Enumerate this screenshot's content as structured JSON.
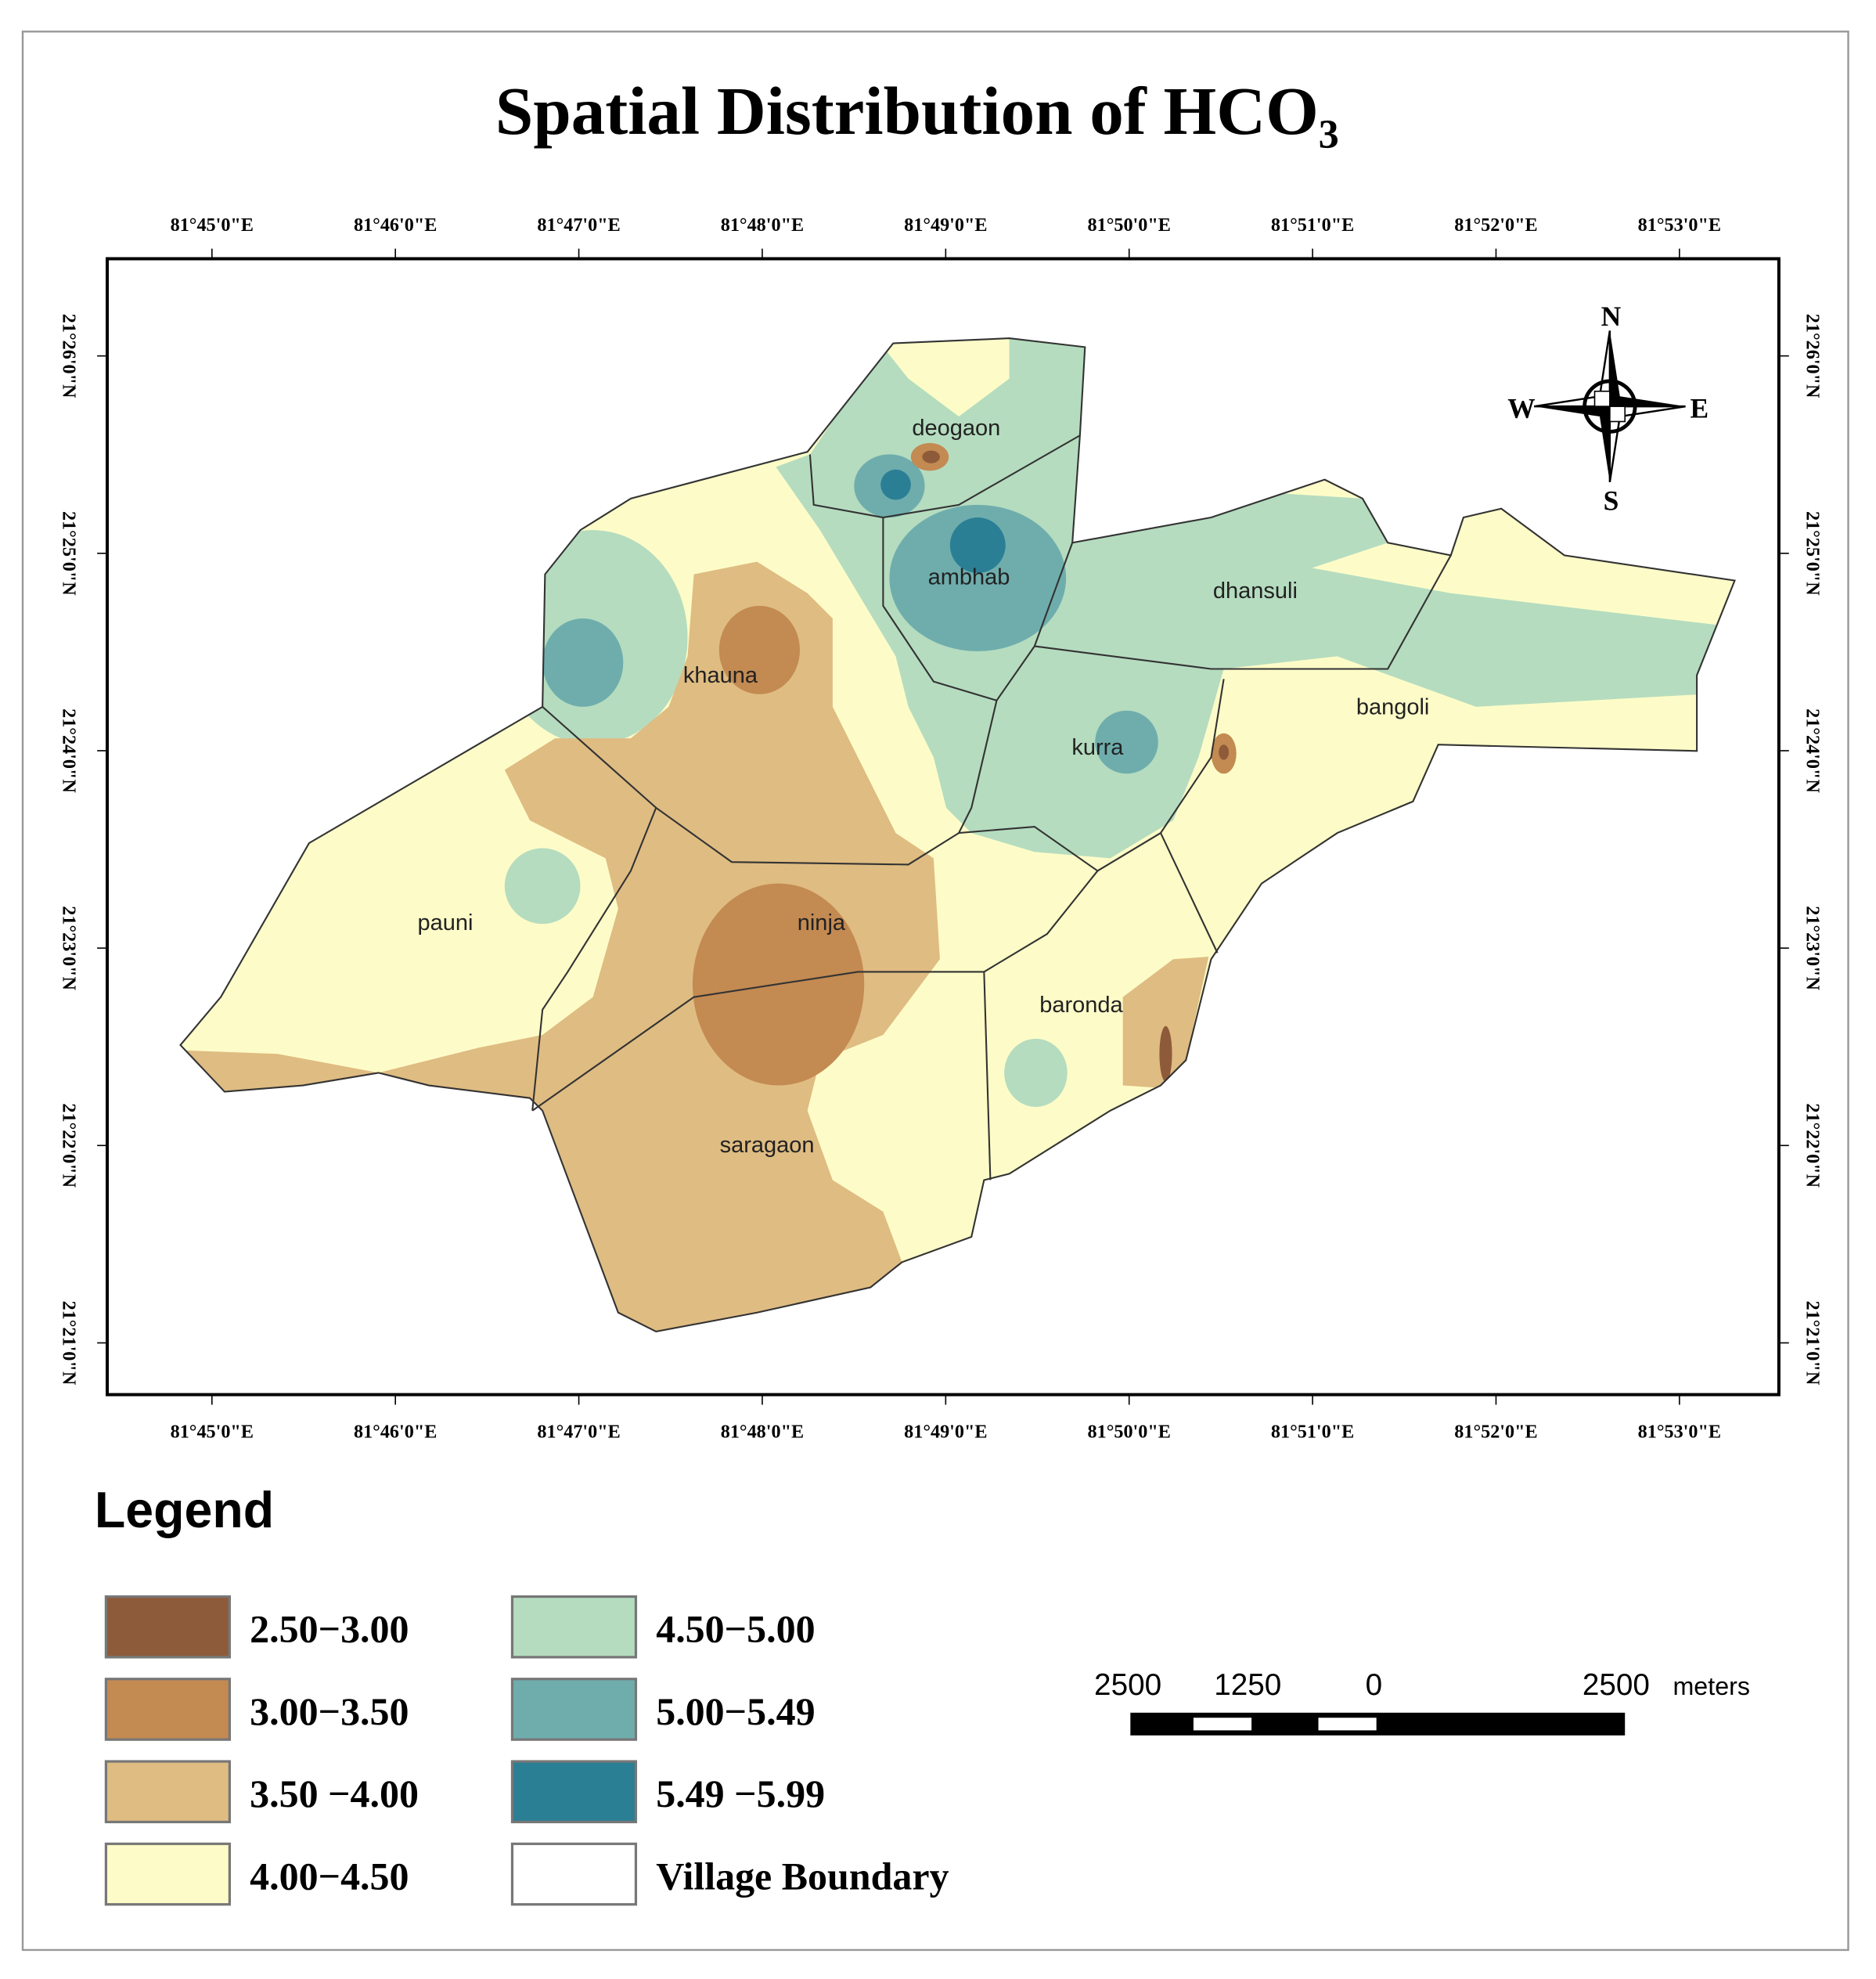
{
  "title": "Spatial Distribution of HCO₃",
  "longitude_labels": [
    "81°45'0\"E",
    "81°46'0\"E",
    "81°47'0\"E",
    "81°48'0\"E",
    "81°49'0\"E",
    "81°50'0\"E",
    "81°51'0\"E",
    "81°52'0\"E",
    "81°53'0\"E"
  ],
  "latitude_labels": [
    "21°26'0\"N",
    "21°25'0\"N",
    "21°24'0\"N",
    "21°23'0\"N",
    "21°22'0\"N",
    "21°21'0\"N"
  ],
  "villages": [
    "deogaon",
    "ambhab",
    "dhansuli",
    "khauna",
    "kurra",
    "bangoli",
    "pauni",
    "ninja",
    "baronda",
    "saragaon"
  ],
  "legend": {
    "title": "Legend",
    "items": [
      {
        "label": "2.50−3.00",
        "color": "#8e5b3a"
      },
      {
        "label": "3.00−3.50",
        "color": "#c38a52"
      },
      {
        "label": "3.50 −4.00",
        "color": "#dfbc82"
      },
      {
        "label": "4.00−4.50",
        "color": "#fdfcc8"
      },
      {
        "label": "4.50−5.00",
        "color": "#b5dcbf"
      },
      {
        "label": "5.00−5.49",
        "color": "#6fadad"
      },
      {
        "label": "5.49 −5.99",
        "color": "#2b7f95"
      },
      {
        "label": "Village Boundary",
        "color": "#ffffff"
      }
    ]
  },
  "compass": {
    "north": "N",
    "east": "E",
    "south": "S",
    "west": "W"
  },
  "scale_bar": {
    "labels": [
      "2500",
      "1250",
      "0",
      "2500"
    ],
    "unit": "meters"
  }
}
